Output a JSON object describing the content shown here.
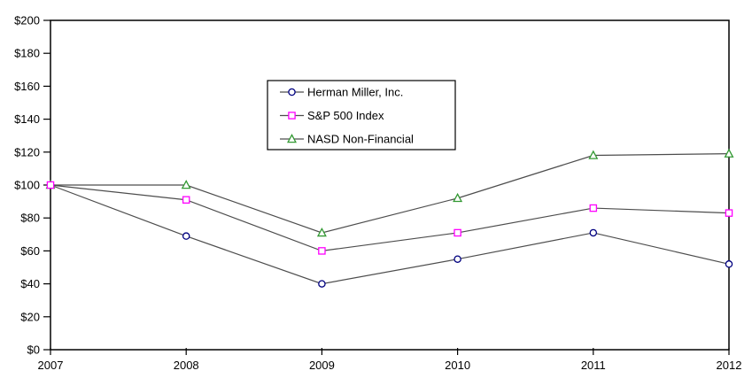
{
  "page": {
    "background": "#ffffff"
  },
  "chart_data": {
    "type": "line",
    "title": "",
    "xlabel": "",
    "ylabel": "",
    "categories": [
      "2007",
      "2008",
      "2009",
      "2010",
      "2011",
      "2012"
    ],
    "series": [
      {
        "name": "Herman Miller, Inc.",
        "marker": "circle",
        "color": "#000080",
        "values": [
          100,
          69,
          40,
          55,
          71,
          52
        ]
      },
      {
        "name": "S&P 500 Index",
        "marker": "square",
        "color": "#ff00ff",
        "values": [
          100,
          91,
          60,
          71,
          86,
          83
        ]
      },
      {
        "name": "NASD Non-Financial",
        "marker": "triangle",
        "color": "#339933",
        "values": [
          100,
          100,
          71,
          92,
          118,
          119
        ]
      }
    ],
    "ylim": [
      0,
      200
    ],
    "y_tick_step": 20,
    "y_tick_labels": [
      "$0",
      "$20",
      "$40",
      "$60",
      "$80",
      "$100",
      "$120",
      "$140",
      "$160",
      "$180",
      "$200"
    ],
    "x_tick_labels": [
      "2007",
      "2008",
      "2009",
      "2010",
      "2011",
      "2012"
    ],
    "grid": false,
    "legend": {
      "position": "inside-top-center",
      "entries": [
        "Herman Miller, Inc.",
        "S&P 500 Index",
        "NASD Non-Financial"
      ]
    },
    "line_color": "#4d4d4d",
    "axis_color": "#000000",
    "text_color": "#000000",
    "marker_fill": "#ffffff"
  }
}
